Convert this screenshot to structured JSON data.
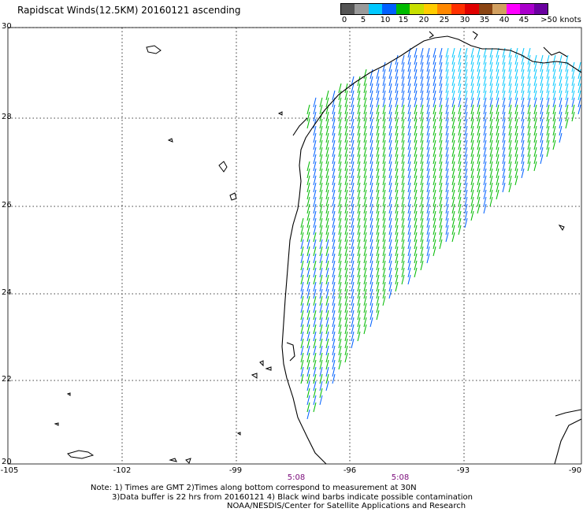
{
  "title": "Rapidscat Winds(12.5KM) 20160121 ascending",
  "colorbar": {
    "swatches": [
      "#555555",
      "#9a9a9a",
      "#00c8ff",
      "#0060ff",
      "#00bb00",
      "#c8e000",
      "#ffcc00",
      "#ff8800",
      "#ff3000",
      "#e00000",
      "#8b4513",
      "#d2a060",
      "#ff00ff",
      "#aa00cc",
      "#6a00a0"
    ],
    "labels": [
      "0",
      "5",
      "10",
      "15",
      "20",
      "25",
      "30",
      "35",
      "40",
      "45",
      ">50 knots"
    ]
  },
  "map": {
    "lat_labels": [
      "30",
      "28",
      "26",
      "24",
      "22",
      "20"
    ],
    "lon_labels": [
      "-105",
      "-102",
      "-99",
      "-96",
      "-93",
      "-90"
    ],
    "time_labels": [
      "5:08",
      "5:08"
    ]
  },
  "notes": {
    "line1": "Note: 1) Times are GMT 2)Times along bottom correspond to measurement at 30N",
    "line2": "3)Data buffer is 22 hrs from 20160121 4) Black wind barbs indicate possible contamination",
    "line3": "NOAA/NESDIS/Center for Satellite Applications and Research"
  }
}
